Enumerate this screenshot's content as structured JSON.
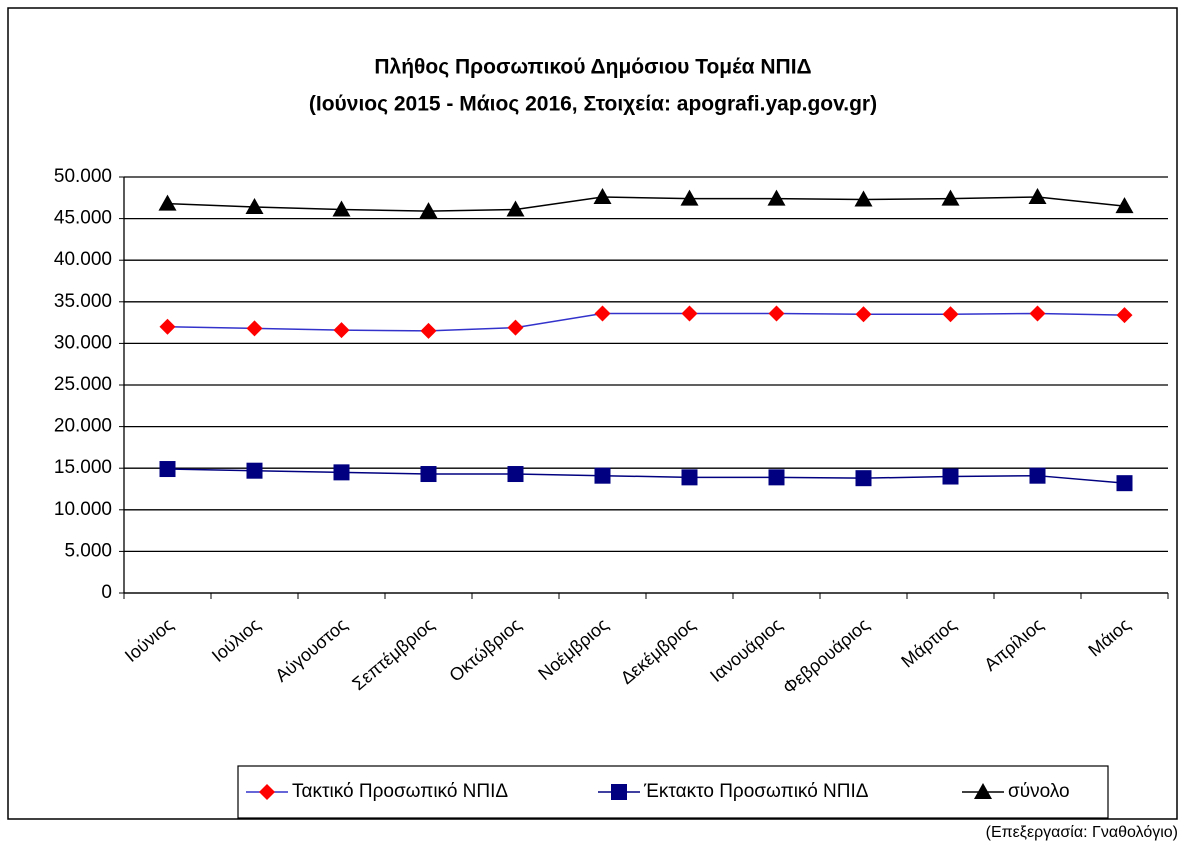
{
  "chart_data": {
    "type": "line",
    "title": "Πλήθος Προσωπικού Δημόσιου Τομέα ΝΠΙΔ",
    "subtitle": "(Ιούνιος 2015 - Μάιος 2016, Στοιχεία: apografi.yap.gov.gr)",
    "categories": [
      "Ιούνιος",
      "Ιούλιος",
      "Αύγουστος",
      "Σεπτέμβριος",
      "Οκτώβριος",
      "Νοέμβριος",
      "Δεκέμβριος",
      "Ιανουάριος",
      "Φεβρουάριος",
      "Μάρτιος",
      "Απρίλιος",
      "Μάιος"
    ],
    "series": [
      {
        "name": "Τακτικό Προσωπικό ΝΠΙΔ",
        "color": "#3333cc",
        "marker_color": "#ff0000",
        "marker": "diamond",
        "values": [
          32000,
          31800,
          31600,
          31500,
          31900,
          33600,
          33600,
          33600,
          33500,
          33500,
          33600,
          33400
        ]
      },
      {
        "name": "Έκτακτο Προσωπικό ΝΠΙΔ",
        "color": "#000080",
        "marker_color": "#000080",
        "marker": "square",
        "values": [
          14900,
          14700,
          14500,
          14300,
          14300,
          14100,
          13900,
          13900,
          13800,
          14000,
          14100,
          13200
        ]
      },
      {
        "name": "σύνολο",
        "color": "#000000",
        "marker_color": "#000000",
        "marker": "triangle",
        "values": [
          46800,
          46400,
          46100,
          45900,
          46100,
          47600,
          47400,
          47400,
          47300,
          47400,
          47600,
          46500
        ]
      }
    ],
    "ylim": [
      0,
      50000
    ],
    "yticks": [
      0,
      {
        "value": 5000,
        "label": "5.000"
      },
      {
        "value": 10000,
        "label": "10.000"
      },
      {
        "value": 15000,
        "label": "15.000"
      },
      {
        "value": 20000,
        "label": "20.000"
      },
      {
        "value": 25000,
        "label": "25.000"
      },
      {
        "value": 30000,
        "label": "30.000"
      },
      {
        "value": 35000,
        "label": "35.000"
      },
      {
        "value": 40000,
        "label": "40.000"
      },
      {
        "value": 45000,
        "label": "45.000"
      },
      {
        "value": 50000,
        "label": "50.000"
      }
    ],
    "grid": true,
    "legend": "bottom",
    "source": "(Επεξεργασία: Γναθολόγιο)"
  }
}
